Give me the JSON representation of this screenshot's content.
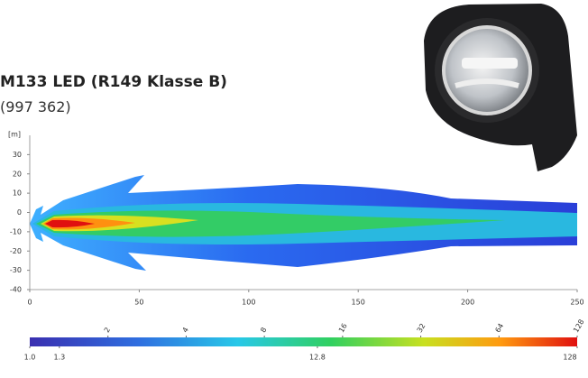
{
  "chart_data": {
    "type": "isolux",
    "title": "M133 LED (R149 Klasse B)",
    "subtitle": "(997 362)",
    "y_unit": "[m]",
    "xlim": [
      0,
      250
    ],
    "ylim": [
      -40,
      40
    ],
    "xticks": [
      0,
      50,
      100,
      150,
      200,
      250
    ],
    "yticks": [
      30,
      20,
      10,
      0,
      -10,
      -20,
      -30,
      -40
    ],
    "colorbar": {
      "scale": "log",
      "lim": [
        1,
        128
      ],
      "ticks": [
        2,
        4,
        8,
        16,
        32,
        64,
        128
      ],
      "labels": [
        {
          "value": 1,
          "label": "1.0"
        },
        1.3,
        12.8,
        128
      ]
    }
  }
}
